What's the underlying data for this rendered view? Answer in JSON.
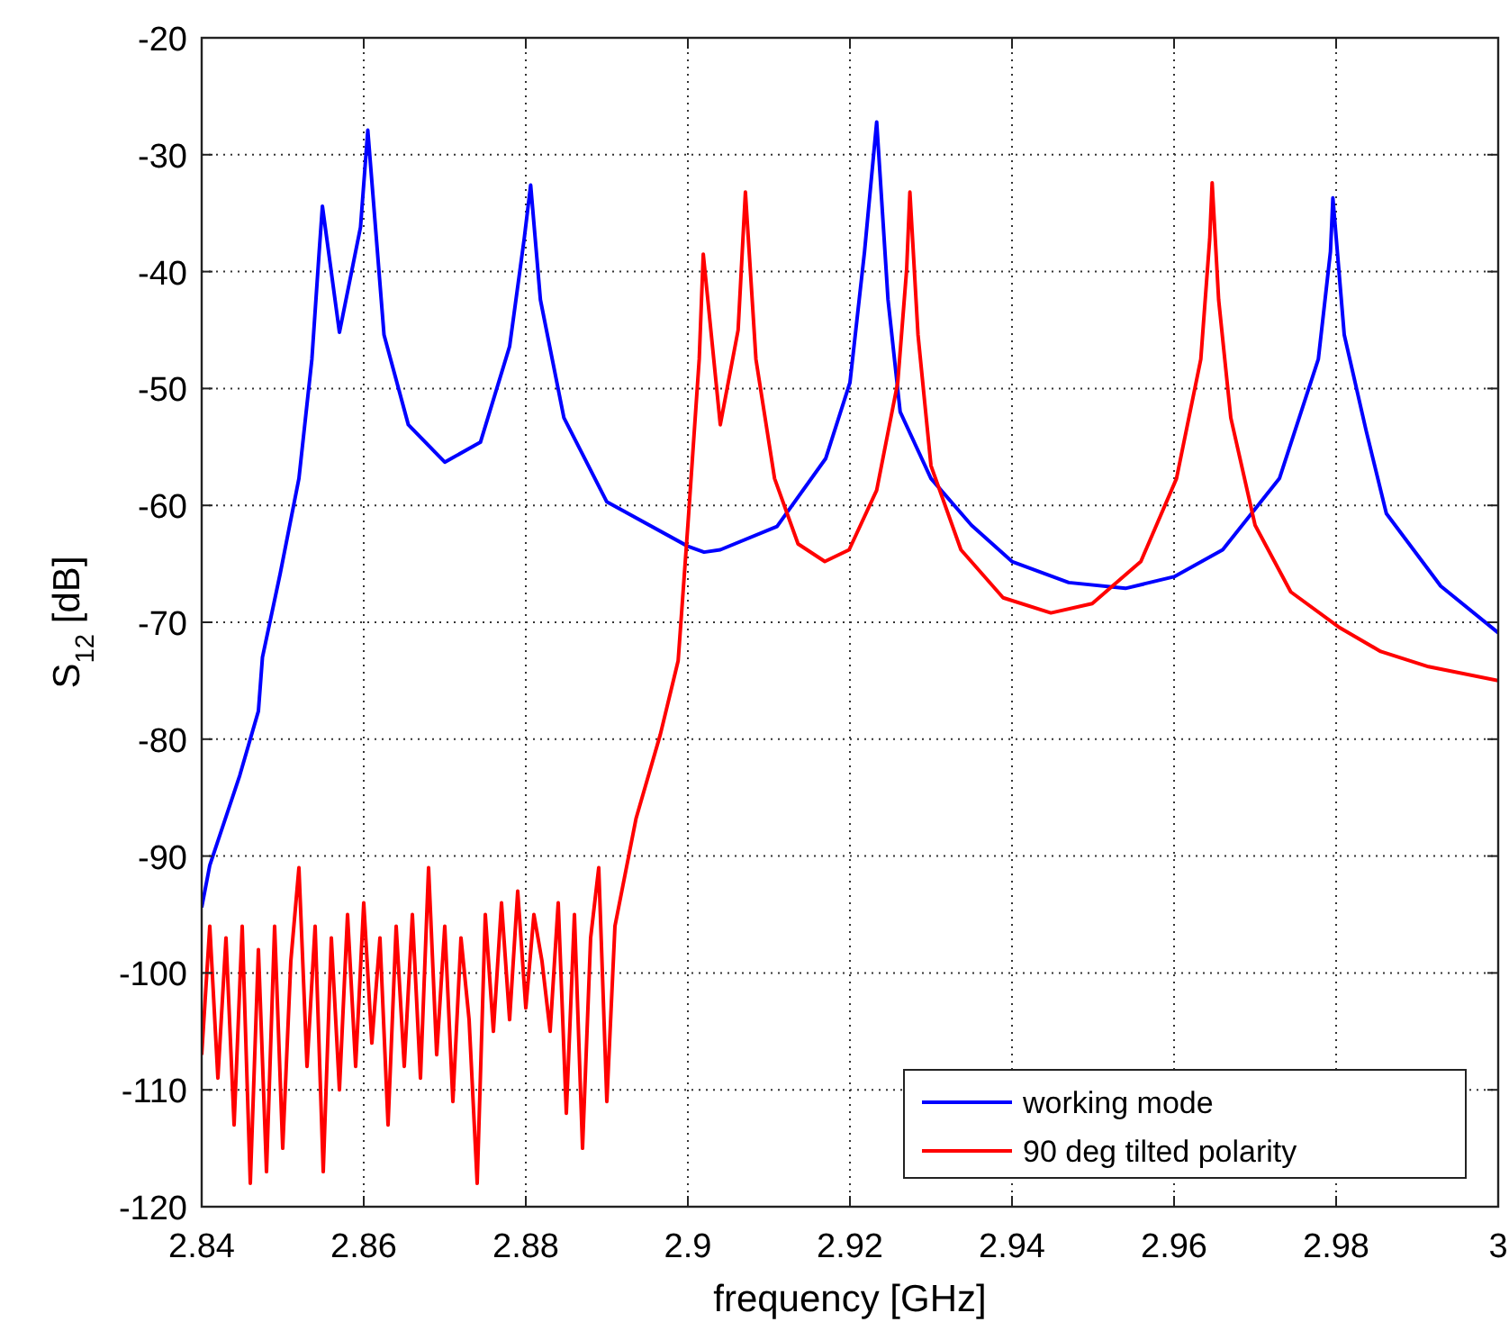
{
  "chart_data": {
    "type": "line",
    "xlabel": "frequency [GHz]",
    "ylabel": "S$_{12}$ [dB]",
    "xlim": [
      2.84,
      3
    ],
    "ylim": [
      -120,
      -20
    ],
    "xticks": [
      2.84,
      2.86,
      2.88,
      2.9,
      2.92,
      2.94,
      2.96,
      2.98,
      3
    ],
    "yticks": [
      -120,
      -110,
      -100,
      -90,
      -80,
      -70,
      -60,
      -50,
      -40,
      -30,
      -20
    ],
    "grid": true,
    "legend": "bottom right",
    "line_style": "solid",
    "series": [
      {
        "name": "working mode",
        "color": "#0000ff",
        "x": [
          2.84,
          2.841,
          2.8447,
          2.847,
          2.8475,
          2.8497,
          2.852,
          2.8536,
          2.8545,
          2.8549,
          2.857,
          2.8596,
          2.8605,
          2.8625,
          2.8655,
          2.87,
          2.8744,
          2.878,
          2.8798,
          2.8806,
          2.8818,
          2.8847,
          2.89,
          2.9,
          2.902,
          2.904,
          2.911,
          2.917,
          2.92,
          2.9218,
          2.9233,
          2.9247,
          2.9262,
          2.93,
          2.935,
          2.94,
          2.947,
          2.954,
          2.96,
          2.966,
          2.973,
          2.9778,
          2.9793,
          2.9796,
          2.981,
          2.9837,
          2.9862,
          2.9929,
          3.0
        ],
        "values": [
          -94.4,
          -90.8,
          -83.1,
          -77.6,
          -73,
          -65.8,
          -57.7,
          -47.5,
          -38.3,
          -34.4,
          -45.2,
          -36.2,
          -27.9,
          -45.4,
          -53.1,
          -56.3,
          -54.6,
          -46.4,
          -37.2,
          -32.6,
          -42.4,
          -52.5,
          -59.7,
          -63.5,
          -64,
          -63.8,
          -61.8,
          -56,
          -49.5,
          -38.3,
          -27.2,
          -42.4,
          -52,
          -57.7,
          -61.7,
          -64.8,
          -66.6,
          -67.1,
          -66.1,
          -63.8,
          -57.7,
          -47.5,
          -38.3,
          -33.7,
          -45.4,
          -53.6,
          -60.7,
          -66.9,
          -70.9
        ]
      },
      {
        "name": "90 deg tilted polarity",
        "color": "#ff0000",
        "x": [
          2.84,
          2.841,
          2.842,
          2.843,
          2.844,
          2.845,
          2.846,
          2.847,
          2.848,
          2.849,
          2.85,
          2.851,
          2.852,
          2.853,
          2.854,
          2.855,
          2.856,
          2.857,
          2.858,
          2.859,
          2.86,
          2.861,
          2.862,
          2.863,
          2.864,
          2.865,
          2.866,
          2.867,
          2.868,
          2.869,
          2.87,
          2.871,
          2.872,
          2.873,
          2.874,
          2.875,
          2.876,
          2.877,
          2.878,
          2.879,
          2.88,
          2.881,
          2.882,
          2.883,
          2.884,
          2.885,
          2.886,
          2.887,
          2.888,
          2.889,
          2.89,
          2.891,
          2.8936,
          2.8966,
          2.8988,
          2.9,
          2.9014,
          2.9019,
          2.904,
          2.9062,
          2.9071,
          2.9084,
          2.9107,
          2.9136,
          2.9169,
          2.9199,
          2.9233,
          2.9259,
          2.927,
          2.9274,
          2.9284,
          2.93,
          2.9337,
          2.9389,
          2.9448,
          2.9499,
          2.9559,
          2.9603,
          2.9633,
          2.9644,
          2.9647,
          2.9655,
          2.967,
          2.97,
          2.9744,
          2.9803,
          2.9855,
          2.9914,
          3.0
        ],
        "values": [
          -107,
          -96,
          -109,
          -97,
          -113,
          -96,
          -118,
          -98,
          -117,
          -96,
          -115,
          -99,
          -91,
          -108,
          -96,
          -117,
          -97,
          -110,
          -95,
          -108,
          -94,
          -106,
          -97,
          -113,
          -96,
          -108,
          -95,
          -109,
          -91,
          -107,
          -96,
          -111,
          -97,
          -104,
          -118,
          -95,
          -105,
          -94,
          -104,
          -93,
          -103,
          -95,
          -99,
          -105,
          -94,
          -112,
          -95,
          -115,
          -97,
          -91,
          -111,
          -96,
          -86.8,
          -79.6,
          -73.3,
          -61.7,
          -47.5,
          -38.5,
          -53.1,
          -45,
          -33.2,
          -47.5,
          -57.7,
          -63.3,
          -64.8,
          -63.8,
          -58.7,
          -49.5,
          -39.8,
          -33.2,
          -45.4,
          -56.6,
          -63.8,
          -67.9,
          -69.2,
          -68.4,
          -64.8,
          -57.7,
          -47.5,
          -37.2,
          -32.4,
          -42.4,
          -52.5,
          -61.7,
          -67.4,
          -70.4,
          -72.5,
          -73.8,
          -75
        ]
      }
    ]
  }
}
